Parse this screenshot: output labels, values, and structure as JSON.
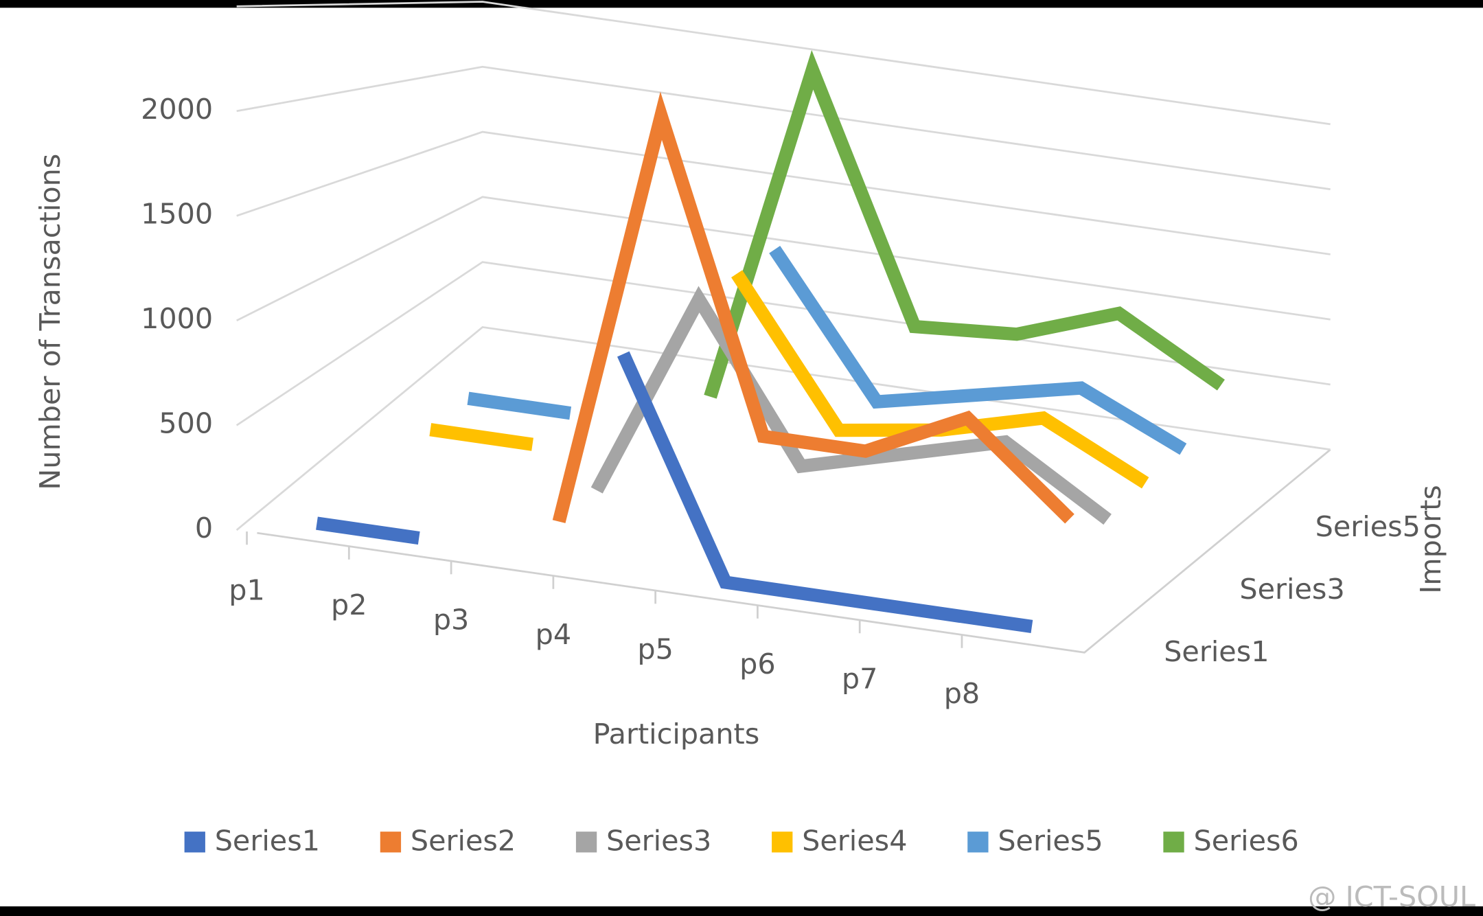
{
  "chart_data": {
    "type": "line3d",
    "title_y": "Number of Transactions",
    "title_x": "Participants",
    "title_depth": "Imports",
    "categories": [
      "p1",
      "p2",
      "p3",
      "p4",
      "p5",
      "p6",
      "p7",
      "p8"
    ],
    "depth_categories": [
      "Series1",
      null,
      "Series3",
      null,
      "Series5",
      null
    ],
    "series": [
      {
        "name": "Series1",
        "color": "#4472c4",
        "values": [
          0,
          0,
          null,
          1050,
          0,
          0,
          0,
          0
        ]
      },
      {
        "name": "Series2",
        "color": "#ed7d31",
        "values": [
          null,
          null,
          0,
          2200,
          600,
          600,
          850,
          400
        ]
      },
      {
        "name": "Series3",
        "color": "#a5a5a5",
        "values": [
          null,
          null,
          0,
          1150,
          300,
          450,
          600,
          250
        ]
      },
      {
        "name": "Series4",
        "color": "#ffc000",
        "values": [
          0,
          0,
          null,
          1200,
          350,
          440,
          600,
          300
        ]
      },
      {
        "name": "Series5",
        "color": "#5b9bd5",
        "values": [
          0,
          0,
          null,
          1250,
          360,
          500,
          640,
          340
        ]
      },
      {
        "name": "Series6",
        "color": "#70ad47",
        "values": [
          null,
          null,
          0,
          2400,
          700,
          750,
          1000,
          600
        ]
      }
    ],
    "ylim": [
      0,
      2500
    ],
    "yticks": [
      0,
      500,
      1000,
      1500,
      2000
    ],
    "grid": true,
    "legend": "bottom",
    "watermark": "@ ICT-SOUL"
  }
}
